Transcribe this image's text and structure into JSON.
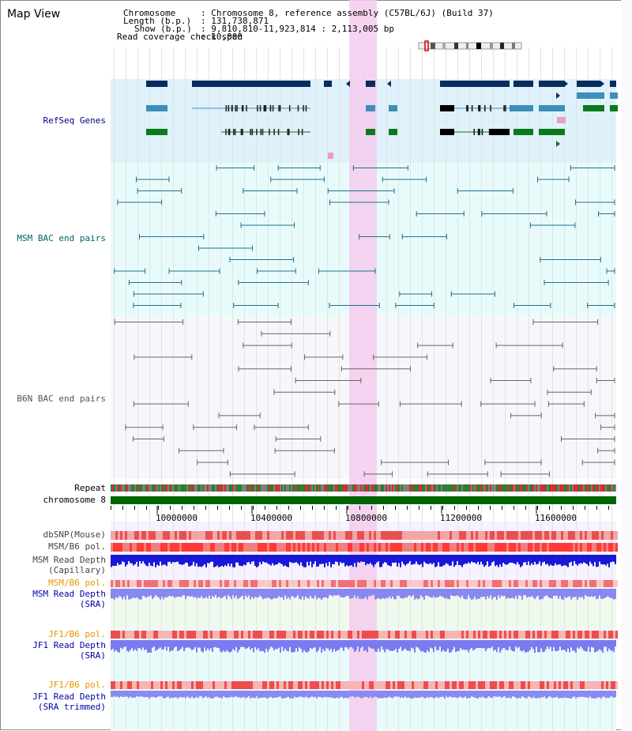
{
  "title": "Map View",
  "header": {
    "chromosome_key": "Chromosome",
    "chromosome_val": ": Chromosome 8, reference assembly (C57BL/6J) (Build 37)",
    "length_key": "Length (b.p.)",
    "length_val": ": 131,738,871",
    "show_key": "Show (b.p.)",
    "show_val": ": 9,810,810-11,923,814 : 2,113,005 bp",
    "coverage_key": "Read coverage check span",
    "coverage_val": ": 10,000"
  },
  "tracks": {
    "refseq": "RefSeq Genes",
    "msm_bac": "MSM BAC end pairs",
    "b6n_bac": "B6N BAC end pairs",
    "repeat": "Repeat",
    "chromosome": "chromosome 8",
    "dbsnp": "dbSNP(Mouse)",
    "msm_b6_pol_1": "MSM/B6 pol.",
    "msm_depth_cap_1": "MSM Read Depth",
    "msm_depth_cap_2": "(Capillary)",
    "msm_b6_pol_2": "MSM/B6 pol.",
    "msm_depth_sra_1": "MSM Read Depth",
    "msm_depth_sra_2": "(SRA)",
    "jf1_b6_pol_1": "JF1/B6 pol.",
    "jf1_depth_sra_1": "JF1 Read Depth",
    "jf1_depth_sra_2": "(SRA)",
    "jf1_b6_pol_2": "JF1/B6 pol.",
    "jf1_depth_trim_1": "JF1 Read Depth",
    "jf1_depth_trim_2": "(SRA trimmed)"
  },
  "axis_ticks": [
    "10000000",
    "10400000",
    "10800000",
    "11200000",
    "11600000"
  ],
  "colors": {
    "refseq_label": "#00008b",
    "msm_label": "#006666",
    "b6n_label": "#555555",
    "pol_label": "#e69500",
    "depth_label": "#0000aa",
    "chromosome_bar": "#006400",
    "highlight": "#f5ccee"
  }
}
